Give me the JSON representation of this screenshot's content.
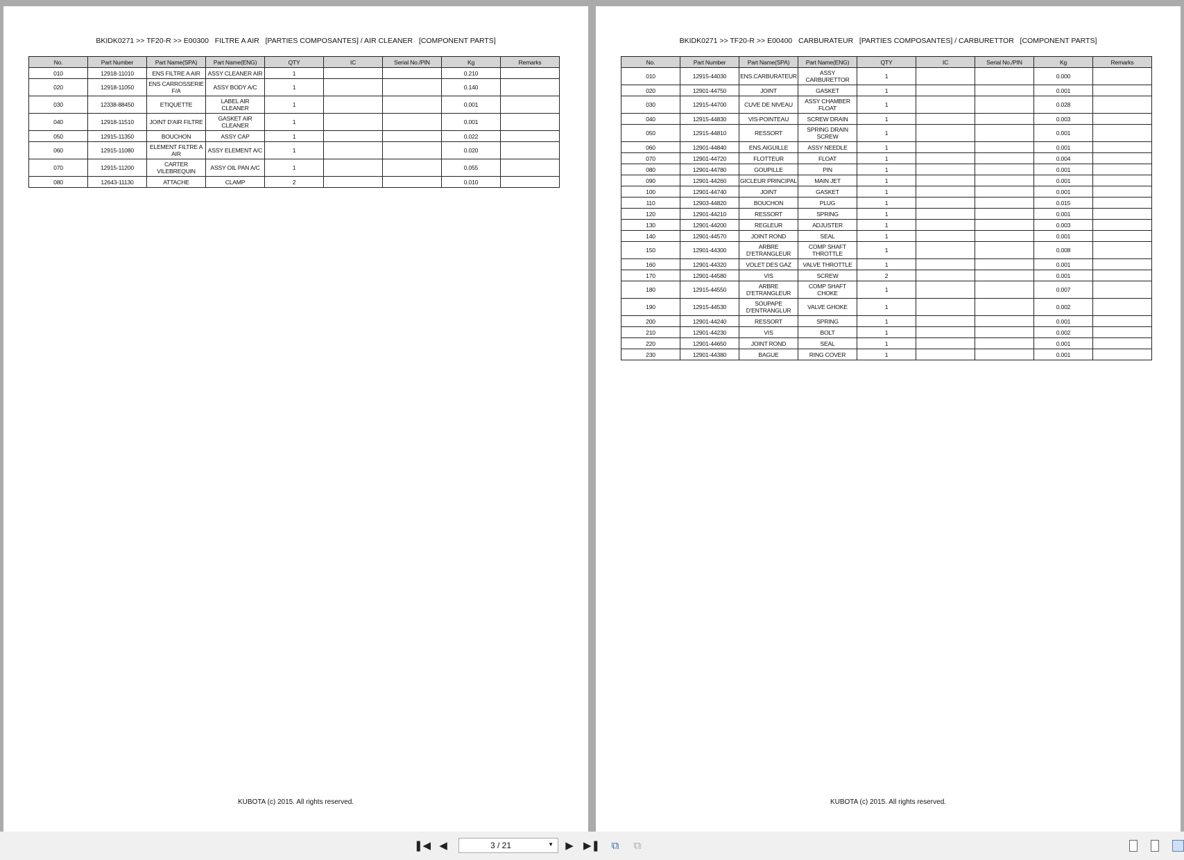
{
  "columns": [
    "No.",
    "Part Number",
    "Part Name(SPA)",
    "Part Name(ENG)",
    "QTY",
    "IC",
    "Serial No./PIN",
    "Kg",
    "Remarks"
  ],
  "pages": [
    {
      "title": "BKIDK0271 >> TF20-R >> E00300   FILTRE A AIR   [PARTIES COMPOSANTES] / AIR CLEANER   [COMPONENT PARTS]",
      "footer": "KUBOTA (c) 2015. All rights reserved.",
      "rows": [
        [
          "010",
          "12918-11010",
          "ENS FILTRE A AIR",
          "ASSY CLEANER AIR",
          "1",
          "",
          "",
          "0.210",
          ""
        ],
        [
          "020",
          "12918-11050",
          "ENS CARROSSERIE F/A",
          "ASSY BODY A/C",
          "1",
          "",
          "",
          "0.140",
          ""
        ],
        [
          "030",
          "12338-88450",
          "ETIQUETTE",
          "LABEL AIR CLEANER",
          "1",
          "",
          "",
          "0.001",
          ""
        ],
        [
          "040",
          "12918-11510",
          "JOINT D'AIR FILTRE",
          "GASKET AIR CLEANER",
          "1",
          "",
          "",
          "0.001",
          ""
        ],
        [
          "050",
          "12915-11350",
          "BOUCHON",
          "ASSY CAP",
          "1",
          "",
          "",
          "0.022",
          ""
        ],
        [
          "060",
          "12915-11080",
          "ELEMENT FILTRE A AIR",
          "ASSY ELEMENT A/C",
          "1",
          "",
          "",
          "0.020",
          ""
        ],
        [
          "070",
          "12915-11200",
          "CARTER VILEBREQUIN",
          "ASSY OIL PAN A/C",
          "1",
          "",
          "",
          "0.055",
          ""
        ],
        [
          "080",
          "12643-11130",
          "ATTACHE",
          "CLAMP",
          "2",
          "",
          "",
          "0.010",
          ""
        ]
      ]
    },
    {
      "title": "BKIDK0271 >> TF20-R >> E00400   CARBURATEUR   [PARTIES COMPOSANTES] / CARBURETTOR   [COMPONENT PARTS]",
      "footer": "KUBOTA (c) 2015. All rights reserved.",
      "rows": [
        [
          "010",
          "12915-44030",
          "ENS.CARBURATEUR",
          "ASSY CARBURETTOR",
          "1",
          "",
          "",
          "0.000",
          ""
        ],
        [
          "020",
          "12901-44750",
          "JOINT",
          "GASKET",
          "1",
          "",
          "",
          "0.001",
          ""
        ],
        [
          "030",
          "12915-44700",
          "CUVE DE NIVEAU",
          "ASSY CHAMBER FLOAT",
          "1",
          "",
          "",
          "0.028",
          ""
        ],
        [
          "040",
          "12915-44830",
          "VIS-POINTEAU",
          "SCREW DRAIN",
          "1",
          "",
          "",
          "0.003",
          ""
        ],
        [
          "050",
          "12915-44810",
          "RESSORT",
          "SPRING DRAIN SCREW",
          "1",
          "",
          "",
          "0.001",
          ""
        ],
        [
          "060",
          "12901-44840",
          "ENS.AIGUILLE",
          "ASSY NEEDLE",
          "1",
          "",
          "",
          "0.001",
          ""
        ],
        [
          "070",
          "12901-44720",
          "FLOTTEUR",
          "FLOAT",
          "1",
          "",
          "",
          "0.004",
          ""
        ],
        [
          "080",
          "12901-44780",
          "GOUPILLE",
          "PIN",
          "1",
          "",
          "",
          "0.001",
          ""
        ],
        [
          "090",
          "12901-44260",
          "GICLEUR PRINCIPAL",
          "MAIN JET",
          "1",
          "",
          "",
          "0.001",
          ""
        ],
        [
          "100",
          "12901-44740",
          "JOINT",
          "GASKET",
          "1",
          "",
          "",
          "0.001",
          ""
        ],
        [
          "110",
          "12903-44820",
          "BOUCHON",
          "PLUG",
          "1",
          "",
          "",
          "0.015",
          ""
        ],
        [
          "120",
          "12901-44210",
          "RESSORT",
          "SPRING",
          "1",
          "",
          "",
          "0.001",
          ""
        ],
        [
          "130",
          "12901-44200",
          "REGLEUR",
          "ADJUSTER",
          "1",
          "",
          "",
          "0.003",
          ""
        ],
        [
          "140",
          "12901-44570",
          "JOINT ROND",
          "SEAL",
          "1",
          "",
          "",
          "0.001",
          ""
        ],
        [
          "150",
          "12901-44300",
          "ARBRE D'ETRANGLEUR",
          "COMP SHAFT THROTTLE",
          "1",
          "",
          "",
          "0.008",
          ""
        ],
        [
          "160",
          "12901-44320",
          "VOLET DES GAZ",
          "VALVE THROTTLE",
          "1",
          "",
          "",
          "0.001",
          ""
        ],
        [
          "170",
          "12901-44580",
          "VIS",
          "SCREW",
          "2",
          "",
          "",
          "0.001",
          ""
        ],
        [
          "180",
          "12915-44550",
          "ARBRE D'ETRANGLEUR",
          "COMP SHAFT CHOKE",
          "1",
          "",
          "",
          "0.007",
          ""
        ],
        [
          "190",
          "12915-44530",
          "SOUPAPE D'ENTRANGLUR",
          "VALVE GHOKE",
          "1",
          "",
          "",
          "0.002",
          ""
        ],
        [
          "200",
          "12901-44240",
          "RESSORT",
          "SPRING",
          "1",
          "",
          "",
          "0.001",
          ""
        ],
        [
          "210",
          "12901-44230",
          "VIS",
          "BOLT",
          "1",
          "",
          "",
          "0.002",
          ""
        ],
        [
          "220",
          "12901-44650",
          "JOINT ROND",
          "SEAL",
          "1",
          "",
          "",
          "0.001",
          ""
        ],
        [
          "230",
          "12901-44380",
          "BAGUE",
          "RING COVER",
          "1",
          "",
          "",
          "0.001",
          ""
        ]
      ]
    }
  ],
  "toolbar": {
    "page_indicator": "3 / 21",
    "icons": [
      "first-page-icon",
      "previous-page-icon",
      "next-page-icon",
      "last-page-icon",
      "go-back-view-icon",
      "go-forward-view-icon",
      "single-page-view-icon",
      "continuous-view-icon",
      "two-page-view-icon"
    ],
    "active_view": "two-page-view"
  }
}
